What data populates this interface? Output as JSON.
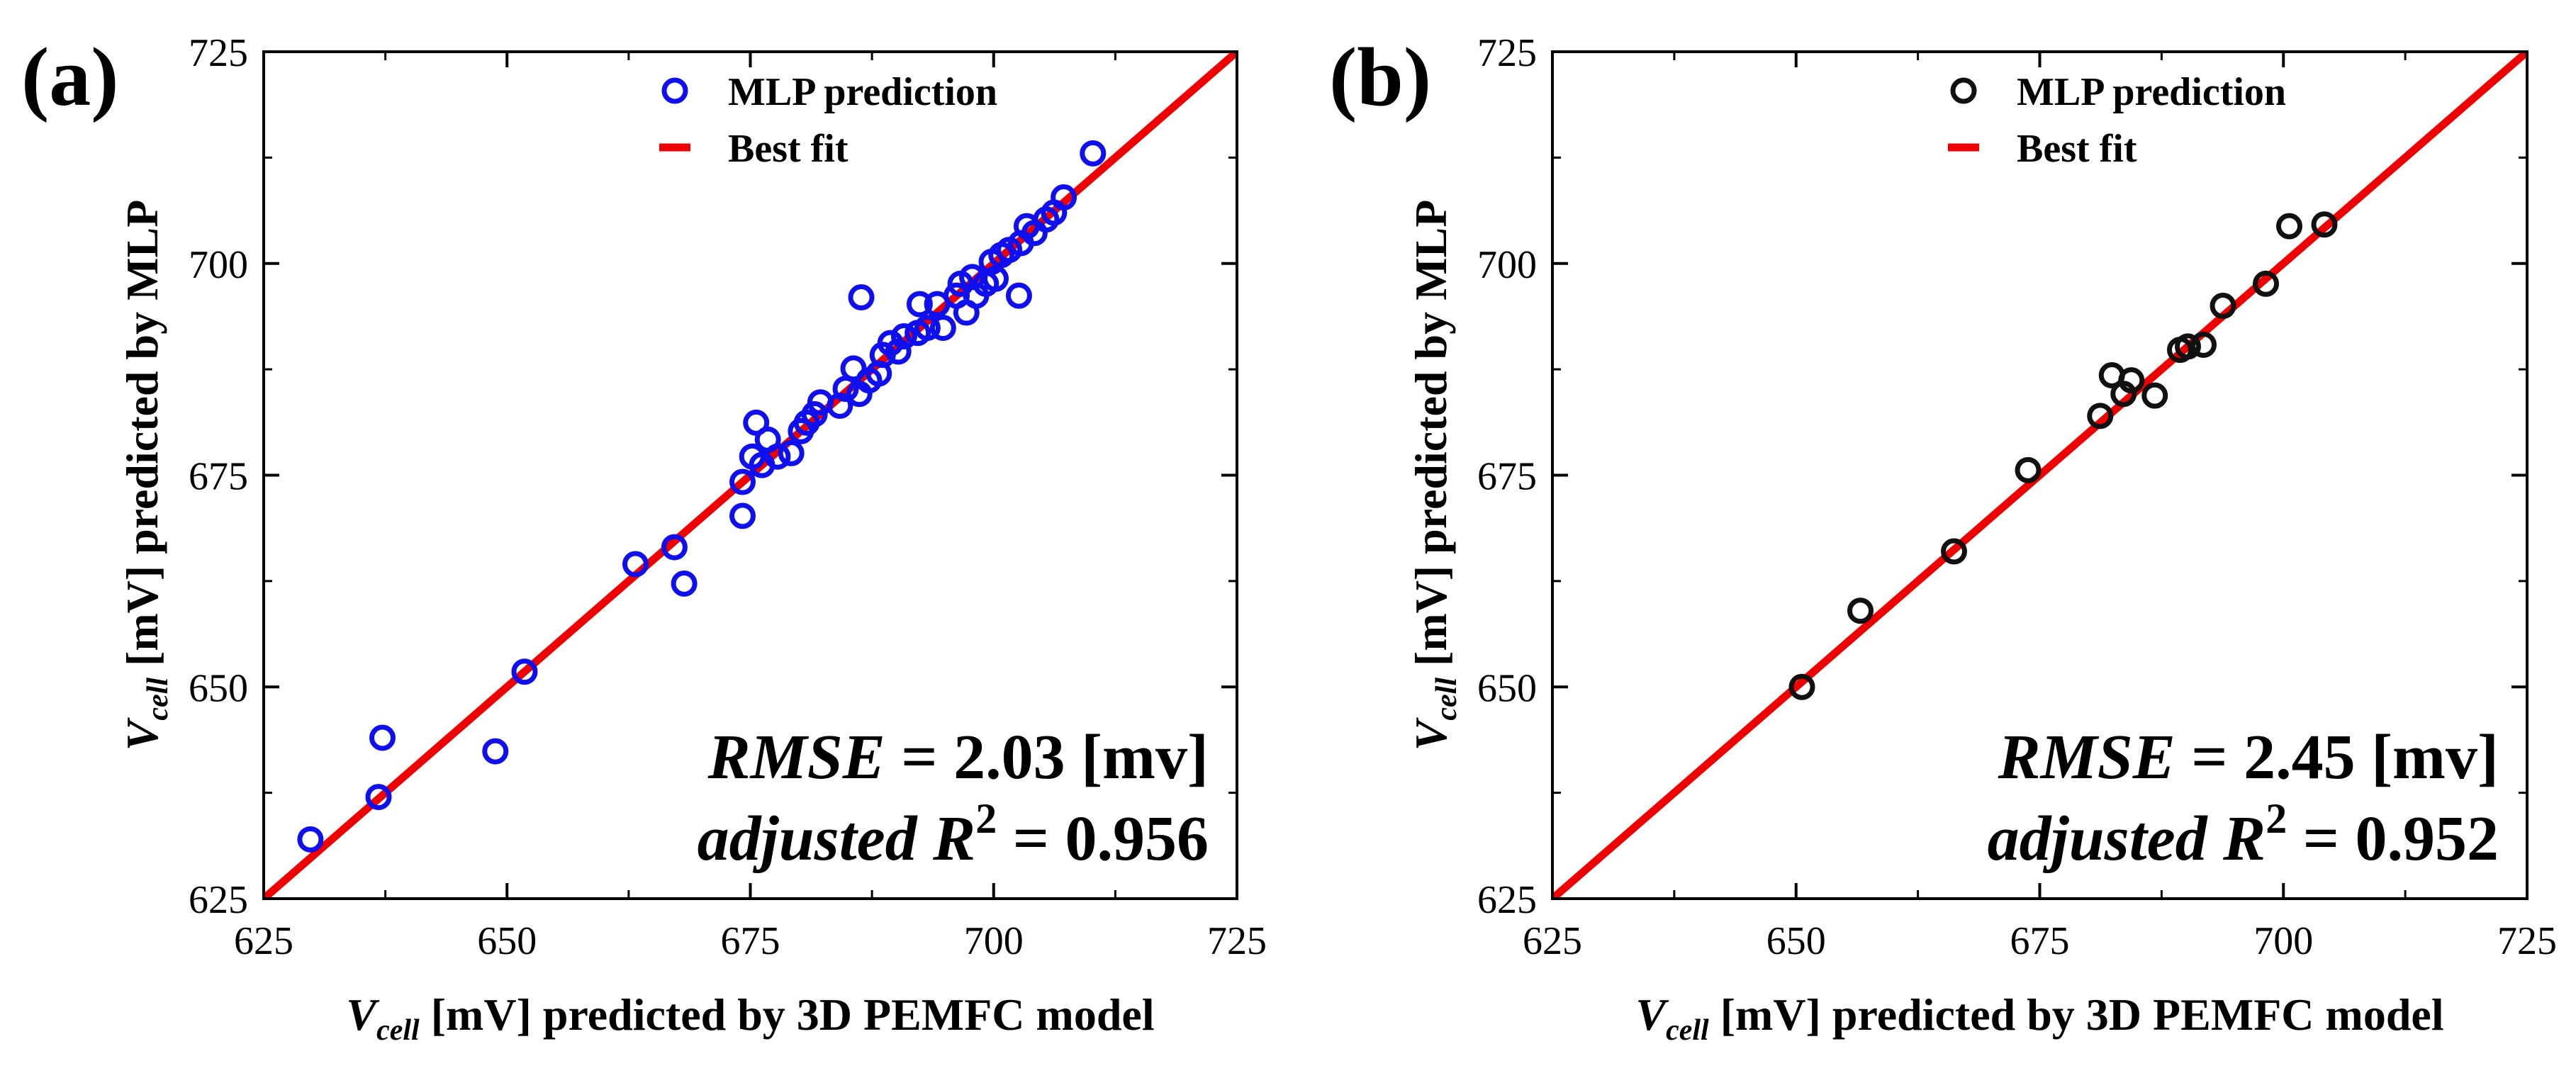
{
  "chart_data": [
    {
      "panel_label": "(a)",
      "type": "scatter",
      "xlabel_sym": "V",
      "xlabel_sub": "cell",
      "xlabel_rest": " [mV] predicted by 3D PEMFC model",
      "ylabel_sym": "V",
      "ylabel_sub": "cell",
      "ylabel_rest": " [mV] predicted by MLP",
      "xlim": [
        625,
        725
      ],
      "ylim": [
        625,
        725
      ],
      "xticks": [
        "625",
        "650",
        "675",
        "700",
        "725"
      ],
      "yticks": [
        "625",
        "650",
        "675",
        "700",
        "725"
      ],
      "legend": {
        "points_label": "MLP prediction",
        "line_label": "Best fit",
        "position": "top-center"
      },
      "annotation": {
        "rmse_label": "RMSE",
        "rmse_value": " = 2.03  [mv]",
        "r2_label": "adjusted R",
        "r2_sup": "2",
        "r2_value": " = 0.956"
      },
      "series": [
        {
          "name": "MLP prediction",
          "color": "#1010ee",
          "points": [
            [
              629.8,
              632.0
            ],
            [
              636.8,
              637.0
            ],
            [
              637.2,
              644.0
            ],
            [
              648.8,
              642.4
            ],
            [
              651.8,
              651.8
            ],
            [
              663.2,
              664.5
            ],
            [
              667.2,
              666.5
            ],
            [
              668.2,
              662.2
            ],
            [
              674.2,
              670.2
            ],
            [
              674.2,
              674.2
            ],
            [
              675.2,
              677.2
            ],
            [
              675.6,
              681.2
            ],
            [
              676.2,
              676.2
            ],
            [
              676.8,
              679.2
            ],
            [
              677.8,
              677.2
            ],
            [
              679.2,
              677.6
            ],
            [
              680.2,
              680.2
            ],
            [
              680.8,
              681.2
            ],
            [
              681.6,
              682.2
            ],
            [
              682.2,
              683.6
            ],
            [
              684.2,
              683.2
            ],
            [
              684.8,
              685.2
            ],
            [
              685.6,
              687.6
            ],
            [
              686.2,
              684.6
            ],
            [
              686.4,
              696.0
            ],
            [
              687.2,
              686.2
            ],
            [
              688.2,
              687.0
            ],
            [
              688.6,
              689.2
            ],
            [
              689.4,
              690.6
            ],
            [
              690.2,
              689.6
            ],
            [
              690.8,
              691.4
            ],
            [
              692.2,
              691.8
            ],
            [
              692.4,
              695.2
            ],
            [
              693.2,
              692.4
            ],
            [
              694.2,
              695.2
            ],
            [
              694.8,
              692.4
            ],
            [
              696.2,
              696.2
            ],
            [
              696.6,
              697.6
            ],
            [
              697.2,
              694.2
            ],
            [
              697.8,
              698.4
            ],
            [
              698.2,
              696.2
            ],
            [
              699.2,
              697.6
            ],
            [
              699.8,
              700.2
            ],
            [
              700.2,
              698.2
            ],
            [
              700.8,
              701.0
            ],
            [
              701.6,
              701.6
            ],
            [
              702.6,
              696.2
            ],
            [
              702.8,
              702.4
            ],
            [
              703.4,
              704.4
            ],
            [
              704.2,
              703.6
            ],
            [
              705.4,
              705.2
            ],
            [
              706.2,
              706.0
            ],
            [
              707.2,
              707.8
            ],
            [
              710.2,
              713.0
            ]
          ]
        },
        {
          "name": "Best fit",
          "color": "#ee0000",
          "x": [
            625,
            725
          ],
          "y": [
            625,
            725
          ]
        }
      ]
    },
    {
      "panel_label": "(b)",
      "type": "scatter",
      "xlabel_sym": "V",
      "xlabel_sub": "cell",
      "xlabel_rest": " [mV] predicted by 3D PEMFC model",
      "ylabel_sym": "V",
      "ylabel_sub": "cell",
      "ylabel_rest": " [mV] predicted by MLP",
      "xlim": [
        625,
        725
      ],
      "ylim": [
        625,
        725
      ],
      "xticks": [
        "625",
        "650",
        "675",
        "700",
        "725"
      ],
      "yticks": [
        "625",
        "650",
        "675",
        "700",
        "725"
      ],
      "legend": {
        "points_label": "MLP prediction",
        "line_label": "Best fit",
        "position": "top-center"
      },
      "annotation": {
        "rmse_label": "RMSE",
        "rmse_value": " = 2.45  [mv]",
        "r2_label": "adjusted R",
        "r2_sup": "2",
        "r2_value": " = 0.952"
      },
      "series": [
        {
          "name": "MLP prediction",
          "color": "#111111",
          "points": [
            [
              650.6,
              650.0
            ],
            [
              656.6,
              659.0
            ],
            [
              666.2,
              666.0
            ],
            [
              673.8,
              675.6
            ],
            [
              681.2,
              682.0
            ],
            [
              682.4,
              686.8
            ],
            [
              683.6,
              684.6
            ],
            [
              684.4,
              686.2
            ],
            [
              686.8,
              684.4
            ],
            [
              689.4,
              689.8
            ],
            [
              690.2,
              690.2
            ],
            [
              691.8,
              690.4
            ],
            [
              693.8,
              695.0
            ],
            [
              698.2,
              697.6
            ],
            [
              700.6,
              704.4
            ],
            [
              704.2,
              704.6
            ]
          ]
        },
        {
          "name": "Best fit",
          "color": "#ee0000",
          "x": [
            625,
            725
          ],
          "y": [
            625,
            725
          ]
        }
      ]
    }
  ]
}
